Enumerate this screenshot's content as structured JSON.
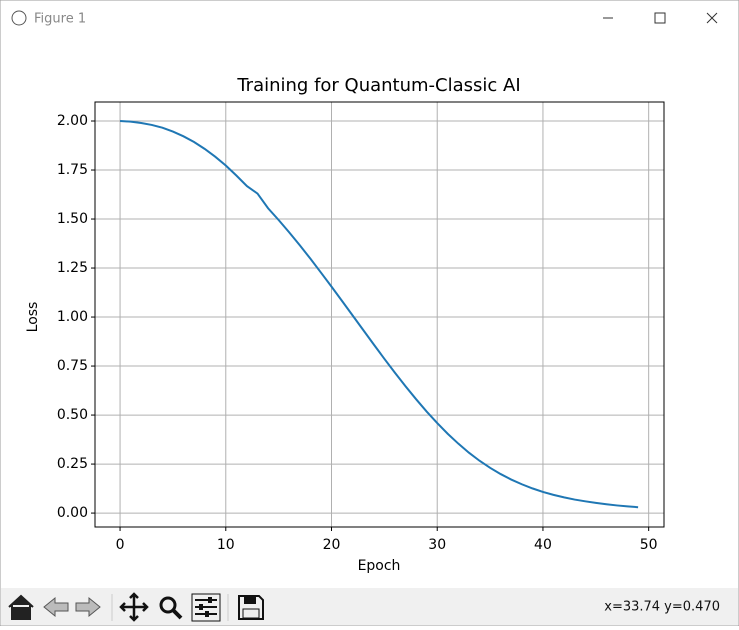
{
  "window": {
    "title": "Figure 1"
  },
  "toolbar": {
    "status": "x=33.74 y=0.470"
  },
  "chart_data": {
    "type": "line",
    "title": "Training for Quantum-Classic AI",
    "x_label": "Epoch",
    "y_label": "Loss",
    "x": [
      0,
      1,
      2,
      3,
      4,
      5,
      6,
      7,
      8,
      9,
      10,
      11,
      12,
      13,
      14,
      15,
      16,
      17,
      18,
      19,
      20,
      21,
      22,
      23,
      24,
      25,
      26,
      27,
      28,
      29,
      30,
      31,
      32,
      33,
      34,
      35,
      36,
      37,
      38,
      39,
      40,
      41,
      42,
      43,
      44,
      45,
      46,
      47,
      48,
      49
    ],
    "series": [
      {
        "color": "#1f77b4",
        "values": [
          2.0,
          1.997,
          1.99,
          1.98,
          1.966,
          1.946,
          1.922,
          1.893,
          1.858,
          1.818,
          1.773,
          1.722,
          1.668,
          1.63,
          1.555,
          1.495,
          1.432,
          1.366,
          1.298,
          1.227,
          1.155,
          1.082,
          1.008,
          0.934,
          0.86,
          0.787,
          0.716,
          0.647,
          0.581,
          0.518,
          0.459,
          0.404,
          0.354,
          0.308,
          0.267,
          0.231,
          0.199,
          0.171,
          0.147,
          0.126,
          0.108,
          0.093,
          0.08,
          0.069,
          0.06,
          0.052,
          0.045,
          0.039,
          0.034,
          0.03
        ]
      }
    ],
    "xlim": [
      -2.37,
      51.45
    ],
    "ylim": [
      -0.071,
      2.097
    ],
    "xticks": [
      0,
      10,
      20,
      30,
      40,
      50
    ],
    "yticks": [
      {
        "value": 0,
        "label": "0.00"
      },
      {
        "value": 0.25,
        "label": "0.25"
      },
      {
        "value": 0.5,
        "label": "0.50"
      },
      {
        "value": 0.75,
        "label": "0.75"
      },
      {
        "value": 1,
        "label": "1.00"
      },
      {
        "value": 1.25,
        "label": "1.25"
      },
      {
        "value": 1.5,
        "label": "1.50"
      },
      {
        "value": 1.75,
        "label": "1.75"
      },
      {
        "value": 2,
        "label": "2.00"
      }
    ],
    "grid": true
  }
}
